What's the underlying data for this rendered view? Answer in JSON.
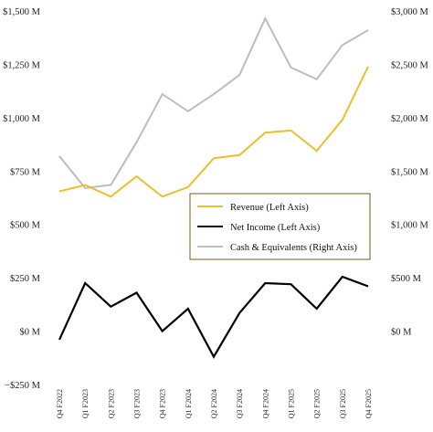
{
  "chart_data": {
    "type": "line",
    "categories": [
      "Q4 F2022",
      "Q1 F2023",
      "Q2 F2023",
      "Q3 F2023",
      "Q4 F2023",
      "Q1 F2024",
      "Q2 F2024",
      "Q3 F2024",
      "Q4 F2024",
      "Q1 F2025",
      "Q2 F2025",
      "Q3 F2025",
      "Q4 F2025"
    ],
    "left_axis": {
      "ylim": [
        -250,
        1500
      ],
      "ticks": [
        -250,
        0,
        250,
        500,
        750,
        1000,
        1250,
        1500
      ],
      "tick_labels": [
        "−$250 M",
        "$0 M",
        "$250 M",
        "$500 M",
        "$750 M",
        "$1,000 M",
        "$1,250 M",
        "$1,500 M"
      ]
    },
    "right_axis": {
      "ylim": [
        -500,
        3000
      ],
      "ticks": [
        0,
        500,
        1000,
        1500,
        2000,
        2500,
        3000
      ],
      "tick_labels": [
        "$0 M",
        "$500 M",
        "$1,000 M",
        "$1,500 M",
        "$2,000 M",
        "$2,500 M",
        "$3,000 M"
      ]
    },
    "series": [
      {
        "name": "Revenue (Left Axis)",
        "axis": "left",
        "color": "#E8C12A",
        "values": [
          655,
          685,
          630,
          725,
          630,
          675,
          810,
          825,
          930,
          940,
          845,
          990,
          1240
        ]
      },
      {
        "name": "Net Income (Left Axis)",
        "axis": "left",
        "color": "#000000",
        "values": [
          -40,
          225,
          115,
          180,
          0,
          105,
          -120,
          85,
          225,
          220,
          105,
          255,
          210
        ]
      },
      {
        "name": "Cash & Equivalents (Right Axis)",
        "axis": "right",
        "color": "#BDBDBD",
        "values": [
          1640,
          1340,
          1370,
          1770,
          2220,
          2060,
          2220,
          2400,
          2930,
          2470,
          2360,
          2680,
          2820
        ]
      }
    ],
    "legend_position": "middle-right",
    "grid": false
  }
}
